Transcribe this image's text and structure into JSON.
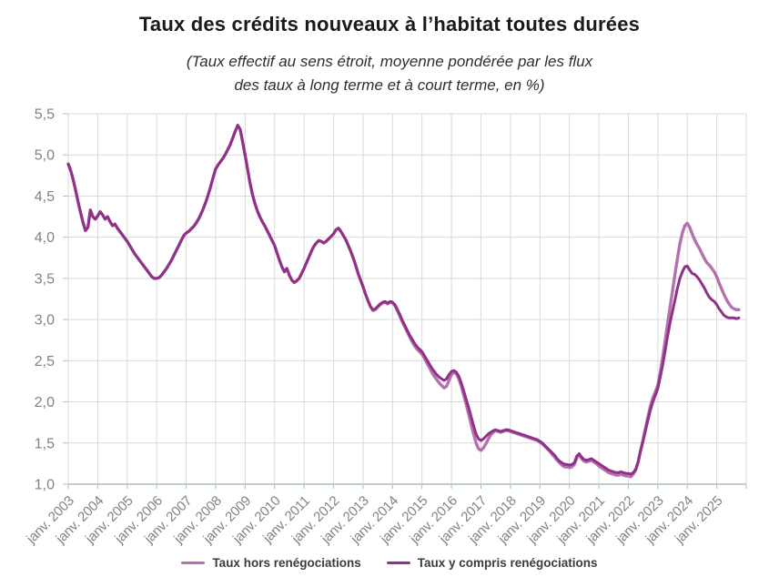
{
  "page": {
    "title": "Taux des crédits nouveaux à l’habitat toutes durées",
    "subtitle_line1": "(Taux effectif au sens étroit, moyenne pondérée par les flux",
    "subtitle_line2": "des taux à long terme et à court terme, en %)"
  },
  "legend": {
    "items": [
      {
        "label": "Taux hors renégociations",
        "color": "#b571ae"
      },
      {
        "label": "Taux y compris renégociations",
        "color": "#8f3287"
      }
    ]
  },
  "chart_data": {
    "type": "line",
    "title": "Taux des crédits nouveaux à l’habitat toutes durées",
    "subtitle": "(Taux effectif au sens étroit, moyenne pondérée par les flux des taux à long terme et à court terme, en %)",
    "unit": "%",
    "x_frequency": "monthly",
    "x_start": "janv. 2003",
    "x_end": "oct. 2025",
    "x_tick_labels": [
      "janv. 2003",
      "janv. 2004",
      "janv. 2005",
      "janv. 2006",
      "janv. 2007",
      "janv. 2008",
      "janv. 2009",
      "janv. 2010",
      "janv. 2011",
      "janv. 2012",
      "janv. 2013",
      "janv. 2014",
      "janv. 2015",
      "janv. 2016",
      "janv. 2017",
      "janv. 2018",
      "janv. 2019",
      "janv. 2020",
      "janv. 2021",
      "janv. 2022",
      "janv. 2023",
      "janv. 2024",
      "janv. 2025"
    ],
    "y_tick_labels": [
      "5,5",
      "5,0",
      "4,5",
      "4,0",
      "3,5",
      "3,0",
      "2,5",
      "2,0",
      "1,5",
      "1,0"
    ],
    "ylim": [
      1.0,
      5.5
    ],
    "y_step": 0.5,
    "x_years_span": 23,
    "grid": true,
    "legend_position": "bottom",
    "decimal_separator": ",",
    "series": [
      {
        "name": "Taux hors renégociations",
        "color": "#b571ae",
        "values": [
          4.89,
          4.81,
          4.7,
          4.57,
          4.43,
          4.3,
          4.18,
          4.08,
          4.12,
          4.33,
          4.25,
          4.22,
          4.26,
          4.31,
          4.27,
          4.22,
          4.25,
          4.19,
          4.14,
          4.16,
          4.11,
          4.07,
          4.03,
          3.99,
          3.95,
          3.9,
          3.85,
          3.8,
          3.76,
          3.72,
          3.68,
          3.64,
          3.6,
          3.56,
          3.52,
          3.5,
          3.5,
          3.51,
          3.54,
          3.58,
          3.62,
          3.67,
          3.72,
          3.78,
          3.84,
          3.9,
          3.96,
          4.02,
          4.05,
          4.07,
          4.1,
          4.13,
          4.17,
          4.22,
          4.28,
          4.35,
          4.43,
          4.52,
          4.62,
          4.73,
          4.83,
          4.88,
          4.92,
          4.96,
          5.01,
          5.07,
          5.13,
          5.21,
          5.29,
          5.36,
          5.31,
          5.16,
          5.0,
          4.83,
          4.66,
          4.52,
          4.41,
          4.32,
          4.25,
          4.19,
          4.14,
          4.08,
          4.02,
          3.96,
          3.9,
          3.81,
          3.72,
          3.64,
          3.58,
          3.62,
          3.54,
          3.48,
          3.45,
          3.47,
          3.5,
          3.56,
          3.62,
          3.69,
          3.76,
          3.83,
          3.89,
          3.93,
          3.96,
          3.95,
          3.93,
          3.95,
          3.98,
          4.01,
          4.04,
          4.09,
          4.11,
          4.07,
          4.02,
          3.97,
          3.9,
          3.83,
          3.75,
          3.66,
          3.56,
          3.48,
          3.4,
          3.31,
          3.23,
          3.16,
          3.11,
          3.12,
          3.15,
          3.18,
          3.2,
          3.21,
          3.19,
          3.21,
          3.2,
          3.17,
          3.11,
          3.04,
          2.97,
          2.91,
          2.85,
          2.79,
          2.73,
          2.68,
          2.64,
          2.61,
          2.58,
          2.53,
          2.47,
          2.42,
          2.36,
          2.31,
          2.27,
          2.23,
          2.2,
          2.17,
          2.19,
          2.26,
          2.33,
          2.36,
          2.34,
          2.28,
          2.19,
          2.08,
          1.97,
          1.85,
          1.73,
          1.61,
          1.5,
          1.43,
          1.41,
          1.44,
          1.49,
          1.55,
          1.6,
          1.63,
          1.65,
          1.64,
          1.63,
          1.64,
          1.65,
          1.65,
          1.64,
          1.63,
          1.62,
          1.61,
          1.6,
          1.59,
          1.58,
          1.57,
          1.56,
          1.55,
          1.54,
          1.53,
          1.51,
          1.49,
          1.46,
          1.43,
          1.4,
          1.36,
          1.33,
          1.29,
          1.26,
          1.23,
          1.21,
          1.21,
          1.2,
          1.21,
          1.24,
          1.32,
          1.36,
          1.31,
          1.28,
          1.27,
          1.28,
          1.29,
          1.27,
          1.25,
          1.22,
          1.2,
          1.18,
          1.16,
          1.14,
          1.13,
          1.12,
          1.11,
          1.11,
          1.12,
          1.11,
          1.1,
          1.1,
          1.09,
          1.12,
          1.17,
          1.27,
          1.41,
          1.54,
          1.68,
          1.82,
          1.95,
          2.05,
          2.12,
          2.2,
          2.36,
          2.54,
          2.74,
          2.95,
          3.15,
          3.35,
          3.55,
          3.74,
          3.92,
          4.05,
          4.14,
          4.17,
          4.12,
          4.04,
          3.97,
          3.91,
          3.86,
          3.8,
          3.74,
          3.69,
          3.66,
          3.62,
          3.58,
          3.52,
          3.44,
          3.37,
          3.3,
          3.24,
          3.19,
          3.15,
          3.13,
          3.12,
          3.12
        ]
      },
      {
        "name": "Taux y compris renégociations",
        "color": "#8f3287",
        "values": [
          4.89,
          4.81,
          4.7,
          4.57,
          4.43,
          4.3,
          4.18,
          4.08,
          4.12,
          4.33,
          4.25,
          4.22,
          4.26,
          4.31,
          4.27,
          4.22,
          4.25,
          4.19,
          4.14,
          4.16,
          4.11,
          4.07,
          4.03,
          3.99,
          3.95,
          3.9,
          3.85,
          3.8,
          3.76,
          3.72,
          3.68,
          3.64,
          3.6,
          3.56,
          3.52,
          3.5,
          3.5,
          3.51,
          3.54,
          3.58,
          3.62,
          3.67,
          3.72,
          3.78,
          3.84,
          3.9,
          3.96,
          4.02,
          4.05,
          4.07,
          4.1,
          4.13,
          4.17,
          4.22,
          4.28,
          4.35,
          4.43,
          4.52,
          4.62,
          4.73,
          4.83,
          4.88,
          4.92,
          4.96,
          5.01,
          5.07,
          5.13,
          5.21,
          5.29,
          5.36,
          5.31,
          5.16,
          5.0,
          4.83,
          4.66,
          4.52,
          4.41,
          4.32,
          4.25,
          4.19,
          4.14,
          4.08,
          4.02,
          3.96,
          3.9,
          3.81,
          3.72,
          3.64,
          3.58,
          3.62,
          3.54,
          3.48,
          3.45,
          3.47,
          3.5,
          3.56,
          3.62,
          3.69,
          3.76,
          3.83,
          3.89,
          3.93,
          3.96,
          3.95,
          3.93,
          3.95,
          3.98,
          4.01,
          4.04,
          4.09,
          4.11,
          4.07,
          4.02,
          3.97,
          3.9,
          3.83,
          3.75,
          3.66,
          3.56,
          3.48,
          3.4,
          3.31,
          3.23,
          3.16,
          3.12,
          3.13,
          3.16,
          3.19,
          3.21,
          3.22,
          3.2,
          3.22,
          3.21,
          3.18,
          3.12,
          3.06,
          2.99,
          2.93,
          2.87,
          2.81,
          2.76,
          2.71,
          2.67,
          2.64,
          2.61,
          2.56,
          2.51,
          2.46,
          2.41,
          2.37,
          2.33,
          2.3,
          2.28,
          2.26,
          2.28,
          2.33,
          2.37,
          2.38,
          2.36,
          2.31,
          2.23,
          2.13,
          2.03,
          1.93,
          1.82,
          1.71,
          1.61,
          1.55,
          1.53,
          1.55,
          1.58,
          1.61,
          1.63,
          1.65,
          1.66,
          1.65,
          1.64,
          1.65,
          1.66,
          1.66,
          1.65,
          1.64,
          1.63,
          1.62,
          1.61,
          1.6,
          1.59,
          1.58,
          1.57,
          1.56,
          1.55,
          1.54,
          1.52,
          1.5,
          1.47,
          1.44,
          1.41,
          1.38,
          1.35,
          1.31,
          1.28,
          1.26,
          1.24,
          1.24,
          1.23,
          1.24,
          1.26,
          1.34,
          1.37,
          1.33,
          1.3,
          1.29,
          1.3,
          1.31,
          1.29,
          1.27,
          1.25,
          1.23,
          1.21,
          1.19,
          1.17,
          1.16,
          1.15,
          1.14,
          1.14,
          1.15,
          1.14,
          1.13,
          1.13,
          1.12,
          1.14,
          1.18,
          1.27,
          1.4,
          1.52,
          1.65,
          1.78,
          1.9,
          2.0,
          2.08,
          2.16,
          2.3,
          2.45,
          2.62,
          2.8,
          2.96,
          3.1,
          3.24,
          3.38,
          3.5,
          3.58,
          3.64,
          3.65,
          3.6,
          3.56,
          3.55,
          3.52,
          3.48,
          3.43,
          3.38,
          3.32,
          3.27,
          3.24,
          3.22,
          3.18,
          3.13,
          3.09,
          3.05,
          3.03,
          3.02,
          3.02,
          3.02,
          3.01,
          3.02
        ]
      }
    ],
    "style": {
      "grid_color": "#d9d9d9",
      "axis_color": "#a9bdb5",
      "tick_color": "#bdbdbd",
      "tick_label_color": "#828282",
      "title_color": "#1a1a1a",
      "legend_text_color": "#3c3c3c",
      "background": "#ffffff"
    }
  }
}
